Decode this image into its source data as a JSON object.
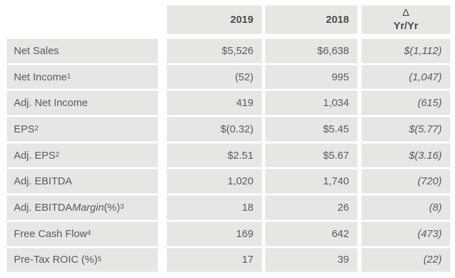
{
  "table": {
    "headers": {
      "col2019": "2019",
      "col2018": "2018",
      "delta_line1": "Δ",
      "delta_line2": "Yr/Yr"
    },
    "rows": [
      {
        "label_segments": [
          {
            "text": "Net Sales",
            "style": "normal"
          }
        ],
        "y2019": "$5,526",
        "y2018": "$6,638",
        "delta": "$(1,112)"
      },
      {
        "label_segments": [
          {
            "text": "Net Income",
            "style": "normal"
          },
          {
            "text": "1",
            "style": "sup"
          }
        ],
        "y2019": "(52)",
        "y2018": "995",
        "delta": "(1,047)"
      },
      {
        "label_segments": [
          {
            "text": "Adj. Net Income",
            "style": "normal"
          }
        ],
        "y2019": "419",
        "y2018": "1,034",
        "delta": "(615)"
      },
      {
        "label_segments": [
          {
            "text": "EPS",
            "style": "normal"
          },
          {
            "text": "2",
            "style": "sup"
          }
        ],
        "y2019": "$(0.32)",
        "y2018": "$5.45",
        "delta": "$(5.77)"
      },
      {
        "label_segments": [
          {
            "text": "Adj. EPS",
            "style": "normal"
          },
          {
            "text": "2",
            "style": "sup"
          }
        ],
        "y2019": "$2.51",
        "y2018": "$5.67",
        "delta": "$(3.16)"
      },
      {
        "label_segments": [
          {
            "text": "Adj. EBITDA",
            "style": "normal"
          }
        ],
        "y2019": "1,020",
        "y2018": "1,740",
        "delta": "(720)"
      },
      {
        "label_segments": [
          {
            "text": "Adj. EBITDA ",
            "style": "normal"
          },
          {
            "text": "Margin",
            "style": "italic"
          },
          {
            "text": " (%)",
            "style": "normal"
          },
          {
            "text": "3",
            "style": "sup"
          }
        ],
        "y2019": "18",
        "y2018": "26",
        "delta": "(8)"
      },
      {
        "label_segments": [
          {
            "text": "Free Cash Flow",
            "style": "normal"
          },
          {
            "text": "4",
            "style": "sup"
          }
        ],
        "y2019": "169",
        "y2018": "642",
        "delta": "(473)"
      },
      {
        "label_segments": [
          {
            "text": "Pre-Tax ROIC (%)",
            "style": "normal"
          },
          {
            "text": "5",
            "style": "sup"
          }
        ],
        "y2019": "17",
        "y2018": "39",
        "delta": "(22)"
      }
    ],
    "colors": {
      "cell_bg": "#e8e6e3",
      "body_text": "#595959",
      "header_text": "#4a4a4a",
      "separator": "#ffffff"
    }
  },
  "chart_data": {
    "type": "table",
    "columns": [
      "",
      "2019",
      "2018",
      "Δ Yr/Yr"
    ],
    "rows": [
      [
        "Net Sales",
        "$5,526",
        "$6,638",
        "$(1,112)"
      ],
      [
        "Net Income¹",
        "(52)",
        "995",
        "(1,047)"
      ],
      [
        "Adj. Net Income",
        "419",
        "1,034",
        "(615)"
      ],
      [
        "EPS²",
        "$(0.32)",
        "$5.45",
        "$(5.77)"
      ],
      [
        "Adj. EPS²",
        "$2.51",
        "$5.67",
        "$(3.16)"
      ],
      [
        "Adj. EBITDA",
        "1,020",
        "1,740",
        "(720)"
      ],
      [
        "Adj. EBITDA Margin (%)³",
        "18",
        "26",
        "(8)"
      ],
      [
        "Free Cash Flow⁴",
        "169",
        "642",
        "(473)"
      ],
      [
        "Pre-Tax ROIC (%)⁵",
        "17",
        "39",
        "(22)"
      ]
    ],
    "notes": "Negative values shown in parentheses; Δ Yr/Yr column rendered in italics"
  }
}
